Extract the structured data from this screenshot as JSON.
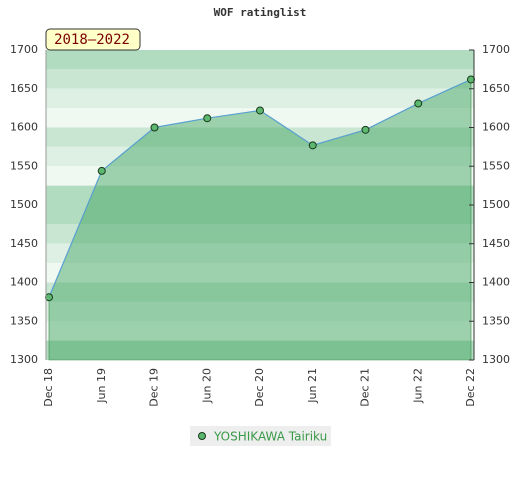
{
  "chart_data": {
    "type": "area",
    "title": "WOF ratinglist",
    "badge": "2018–2022",
    "categories": [
      "Dec 18",
      "Jun 19",
      "Dec 19",
      "Jun 20",
      "Dec 20",
      "Jun 21",
      "Dec 21",
      "Jun 22",
      "Dec 22"
    ],
    "series": [
      {
        "name": "YOSHIKAWA Tairiku",
        "color": "#5aa0d0",
        "values": [
          1381,
          1544,
          1600,
          1612,
          1622,
          1577,
          1597,
          1631,
          1662
        ]
      }
    ],
    "ylim": [
      1300,
      1700
    ],
    "yticks": [
      1300,
      1350,
      1400,
      1450,
      1500,
      1550,
      1600,
      1650,
      1700
    ]
  }
}
